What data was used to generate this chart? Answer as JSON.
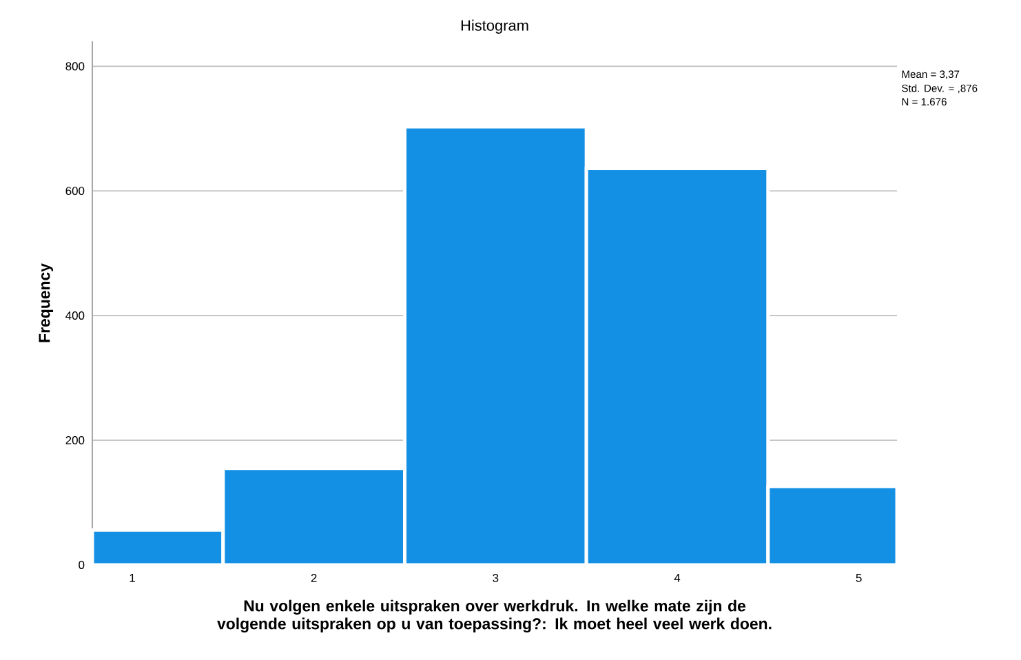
{
  "chart_data": {
    "type": "histogram",
    "title": "Histogram",
    "xlabel": "Nu volgen enkele uitspraken over werkdruk. In welke mate zijn de volgende uitspraken op u van toepassing?: Ik moet heel veel werk doen.",
    "ylabel": "Frequency",
    "bins": [
      0.78,
      1.5,
      2.5,
      3.5,
      4.5,
      5.21
    ],
    "values": [
      56,
      155,
      703,
      636,
      126
    ],
    "color": "#1390e4",
    "xlim": [
      0.78,
      5.21
    ],
    "xticks": [
      1,
      2,
      3,
      4,
      5
    ],
    "ylim": [
      0,
      840
    ],
    "yticks": [
      0,
      200,
      400,
      600,
      800
    ],
    "grid": "y",
    "annotations": [
      "Mean = 3,37",
      "Std. Dev. = ,876",
      "N = 1.676"
    ]
  }
}
